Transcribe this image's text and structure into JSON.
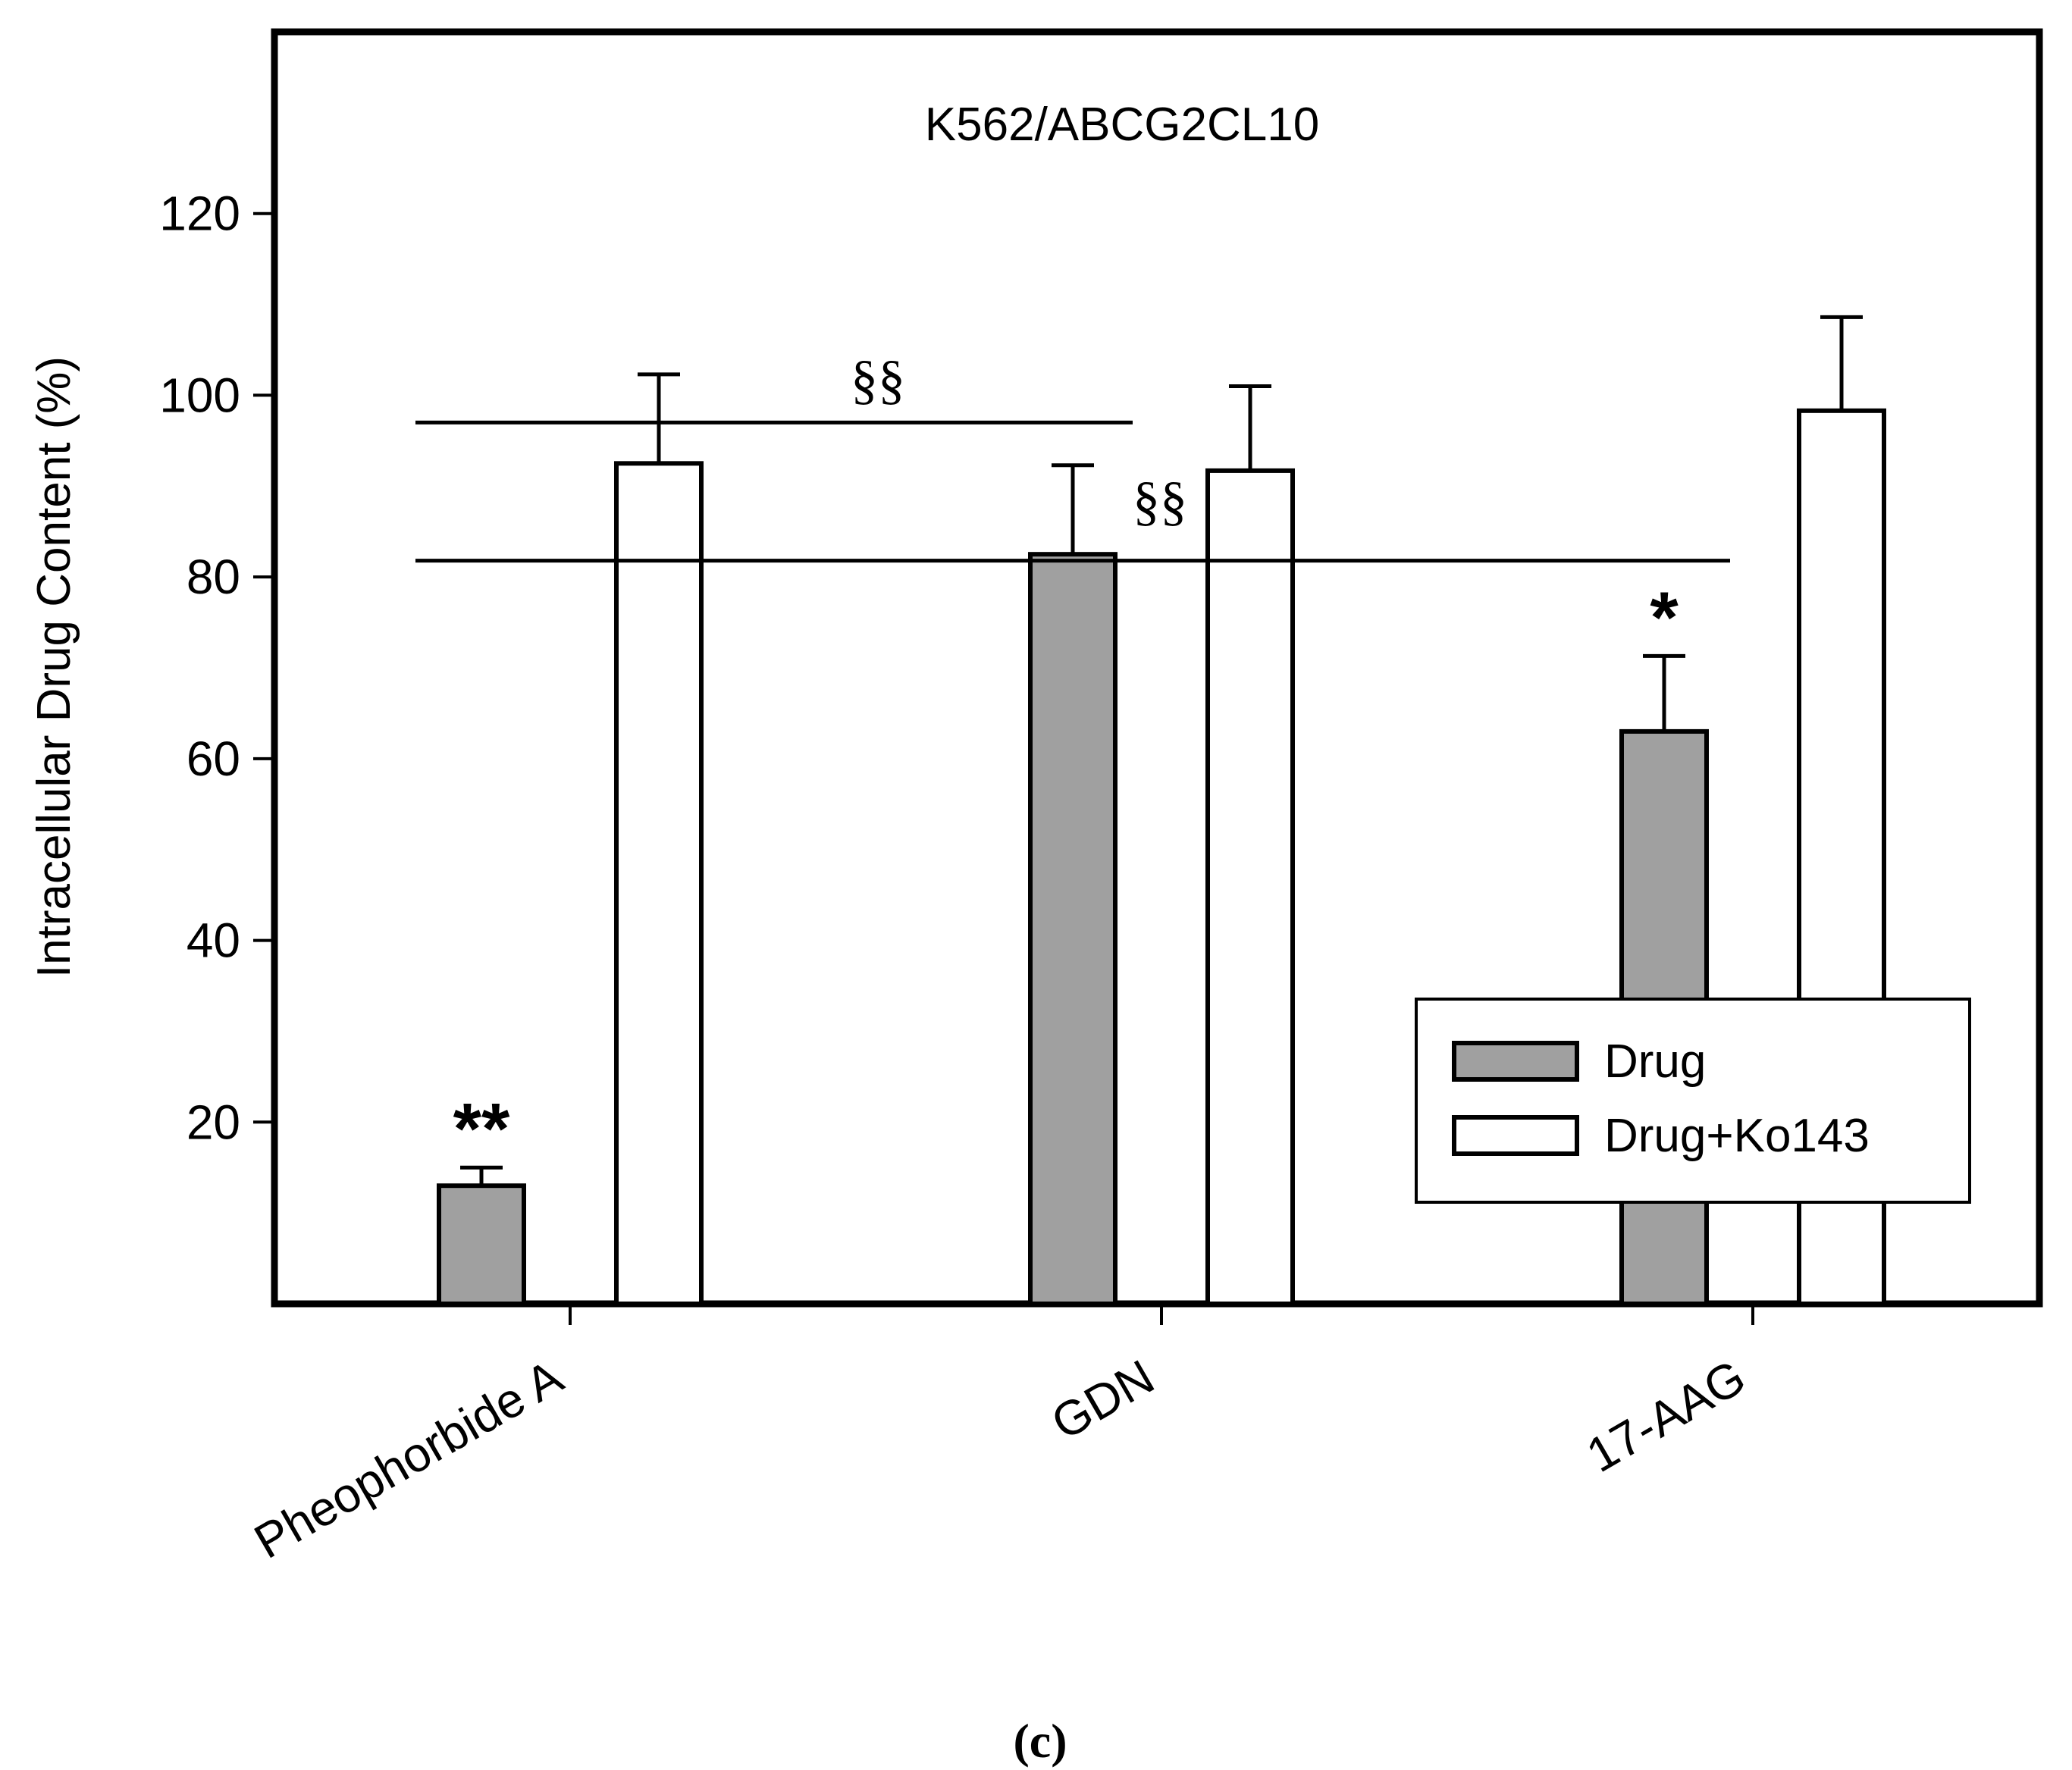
{
  "chart_data": {
    "type": "bar",
    "title": "K562/ABCG2CL10",
    "categories": [
      "Pheophorbide A",
      "GDN",
      "17-AAG"
    ],
    "series": [
      {
        "name": "Drug",
        "color": "#a0a0a0",
        "values": [
          13,
          82.5,
          63
        ],
        "errors": [
          2,
          9.8,
          8.3
        ]
      },
      {
        "name": "Drug+Ko143",
        "color": "#ffffff",
        "values": [
          92.5,
          91.7,
          98.3
        ],
        "errors": [
          9.8,
          9.3,
          10.3
        ]
      }
    ],
    "xlabel": "",
    "ylabel": "Intracellular Drug Content (%)",
    "ylim": [
      0,
      140
    ],
    "yticks": [
      20,
      40,
      60,
      80,
      100,
      120
    ],
    "ytick_labels": [
      "20",
      "40",
      "60",
      "80",
      "100",
      "120"
    ],
    "grid": false,
    "legend_position": "bottom-right",
    "significance_lines": [
      {
        "y": 97,
        "from": "Pheophorbide A",
        "to": "GDN",
        "label": "§§"
      },
      {
        "y": 81.8,
        "from": "Pheophorbide A",
        "to": "17-AAG",
        "label": "§§"
      }
    ],
    "bar_annotations": [
      {
        "category": "Pheophorbide A",
        "series": "Drug",
        "label": "**"
      },
      {
        "category": "17-AAG",
        "series": "Drug",
        "label": "*"
      }
    ]
  },
  "caption": "(c)"
}
